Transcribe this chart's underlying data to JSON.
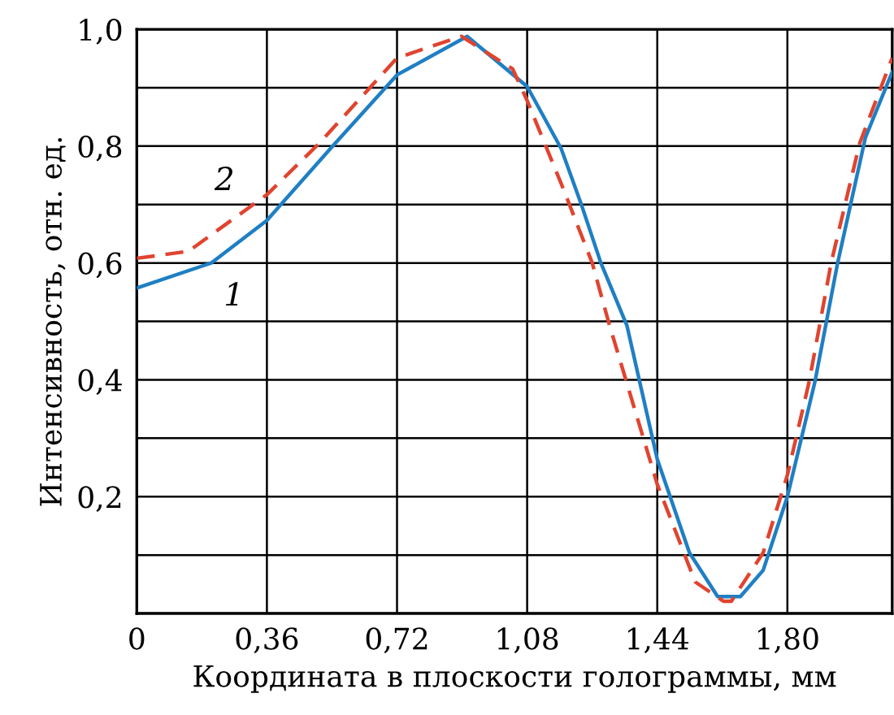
{
  "chart_data": {
    "type": "line",
    "xlabel": "Координата в плоскости голограммы, мм",
    "ylabel": "Интенсивность, отн. ед.",
    "xlim": [
      0,
      2.09
    ],
    "ylim": [
      0,
      1.0
    ],
    "xticks": [
      0,
      {
        "value": 0.36,
        "label": "0,36"
      },
      {
        "value": 0.72,
        "label": "0,72"
      },
      {
        "value": 1.08,
        "label": "1,08"
      },
      {
        "value": 1.44,
        "label": "1,44"
      },
      {
        "value": 1.8,
        "label": "1,80"
      }
    ],
    "yticks": [
      {
        "value": 0,
        "label": null
      },
      {
        "value": 0.1,
        "label": null
      },
      {
        "value": 0.2,
        "label": "0,2"
      },
      {
        "value": 0.3,
        "label": null
      },
      {
        "value": 0.4,
        "label": "0,4"
      },
      {
        "value": 0.5,
        "label": null
      },
      {
        "value": 0.6,
        "label": "0,6"
      },
      {
        "value": 0.7,
        "label": null
      },
      {
        "value": 0.8,
        "label": "0,8"
      },
      {
        "value": 0.9,
        "label": null
      },
      {
        "value": 1.0,
        "label": "1,0"
      }
    ],
    "grid": true,
    "legend": false,
    "marker": "none",
    "series": [
      {
        "name": "1",
        "color": "#1f7fc4",
        "line_style": "solid",
        "x": [
          0,
          0.206,
          0.36,
          0.536,
          0.72,
          0.914,
          1.08,
          1.174,
          1.23,
          1.284,
          1.356,
          1.44,
          1.529,
          1.607,
          1.67,
          1.733,
          1.8,
          1.876,
          1.939,
          2.016,
          2.09
        ],
        "values": [
          0.557,
          0.6,
          0.673,
          0.796,
          0.922,
          0.988,
          0.902,
          0.796,
          0.7,
          0.6,
          0.493,
          0.264,
          0.104,
          0.029,
          0.029,
          0.074,
          0.2,
          0.396,
          0.6,
          0.815,
          0.927
        ]
      },
      {
        "name": "2",
        "color": "#e0442f",
        "line_style": "dashed",
        "x": [
          0,
          0.143,
          0.36,
          0.505,
          0.72,
          0.898,
          1.04,
          1.08,
          1.18,
          1.26,
          1.308,
          1.44,
          1.545,
          1.623,
          1.645,
          1.733,
          1.8,
          1.86,
          1.921,
          2.0,
          2.09
        ],
        "values": [
          0.608,
          0.62,
          0.717,
          0.805,
          0.951,
          0.988,
          0.932,
          0.878,
          0.727,
          0.6,
          0.493,
          0.221,
          0.054,
          0.021,
          0.021,
          0.104,
          0.237,
          0.396,
          0.6,
          0.805,
          0.951
        ]
      }
    ]
  }
}
